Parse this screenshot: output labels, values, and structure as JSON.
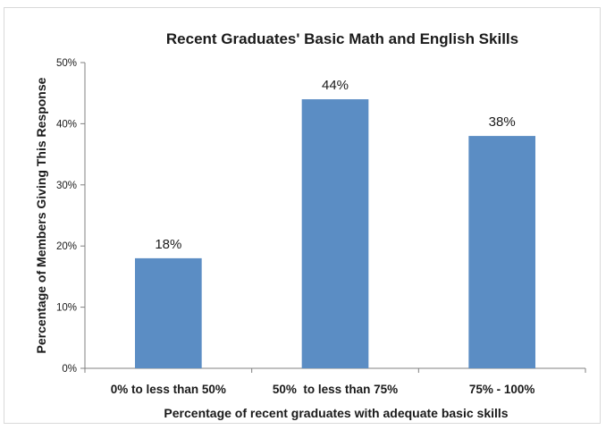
{
  "chart_data": {
    "type": "bar",
    "title": "Recent Graduates' Basic Math and English Skills",
    "xlabel": "Percentage of recent graduates with adequate basic skills",
    "ylabel": "Percentage of Members Giving This Response",
    "categories": [
      "0% to less than 50%",
      "50%  to less than 75%",
      "75% - 100%"
    ],
    "values": [
      18,
      44,
      38
    ],
    "data_labels": [
      "18%",
      "44%",
      "38%"
    ],
    "yticks": [
      "0%",
      "10%",
      "20%",
      "30%",
      "40%",
      "50%"
    ],
    "ylim": [
      0,
      50
    ],
    "grid": false,
    "legend": "none",
    "bar_color": "#5b8dc4"
  }
}
